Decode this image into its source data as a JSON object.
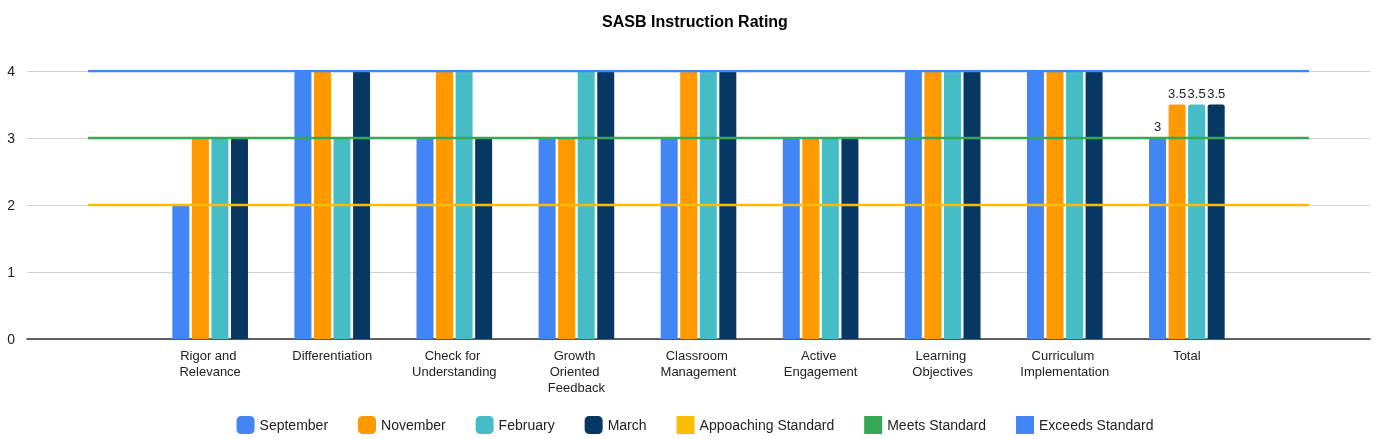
{
  "chart_data": {
    "type": "bar",
    "title": "SASB Instruction Rating",
    "categories": [
      null,
      "Rigor and Relevance",
      "Differentiation",
      "Check for Understanding",
      "Growth Oriented Feedback",
      "Classroom Management",
      "Active Engagement",
      "Learning Objectives",
      "Curriculum Implementation",
      "Total",
      null
    ],
    "series": [
      {
        "name": "September",
        "color": "#4285f4",
        "values": [
          null,
          2,
          4,
          3,
          3,
          3,
          3,
          4,
          4,
          3,
          null
        ],
        "value_labels": [
          null,
          null,
          null,
          null,
          null,
          null,
          null,
          null,
          null,
          "3",
          null
        ]
      },
      {
        "name": "November",
        "color": "#ff9900",
        "values": [
          null,
          3,
          4,
          4,
          3,
          4,
          3,
          4,
          4,
          3.5,
          null
        ],
        "value_labels": [
          null,
          null,
          null,
          null,
          null,
          null,
          null,
          null,
          null,
          "3.5",
          null
        ]
      },
      {
        "name": "February",
        "color": "#46bdc6",
        "values": [
          null,
          3,
          3,
          4,
          4,
          4,
          3,
          4,
          4,
          3.5,
          null
        ],
        "value_labels": [
          null,
          null,
          null,
          null,
          null,
          null,
          null,
          null,
          null,
          "3.5",
          null
        ]
      },
      {
        "name": "March",
        "color": "#073763",
        "values": [
          null,
          3,
          4,
          3,
          4,
          4,
          3,
          4,
          4,
          3.5,
          null
        ],
        "value_labels": [
          null,
          null,
          null,
          null,
          null,
          null,
          null,
          null,
          null,
          "3.5",
          null
        ]
      },
      {
        "name": "Appoaching Standard",
        "type": "line",
        "color": "#fbbc04",
        "values": [
          2,
          2,
          2,
          2,
          2,
          2,
          2,
          2,
          2,
          2,
          2
        ]
      },
      {
        "name": "Meets Standard",
        "type": "line",
        "color": "#34a853",
        "values": [
          3,
          3,
          3,
          3,
          3,
          3,
          3,
          3,
          3,
          3,
          3
        ]
      },
      {
        "name": "Exceeds Standard",
        "type": "line",
        "color": "#4285f4",
        "values": [
          4,
          4,
          4,
          4,
          4,
          4,
          4,
          4,
          4,
          4,
          4
        ]
      }
    ],
    "ylim": [
      0,
      4
    ],
    "yticks": [
      0,
      1,
      2,
      3,
      4
    ],
    "grid": "y",
    "legend": "bottom",
    "marker": "none"
  }
}
